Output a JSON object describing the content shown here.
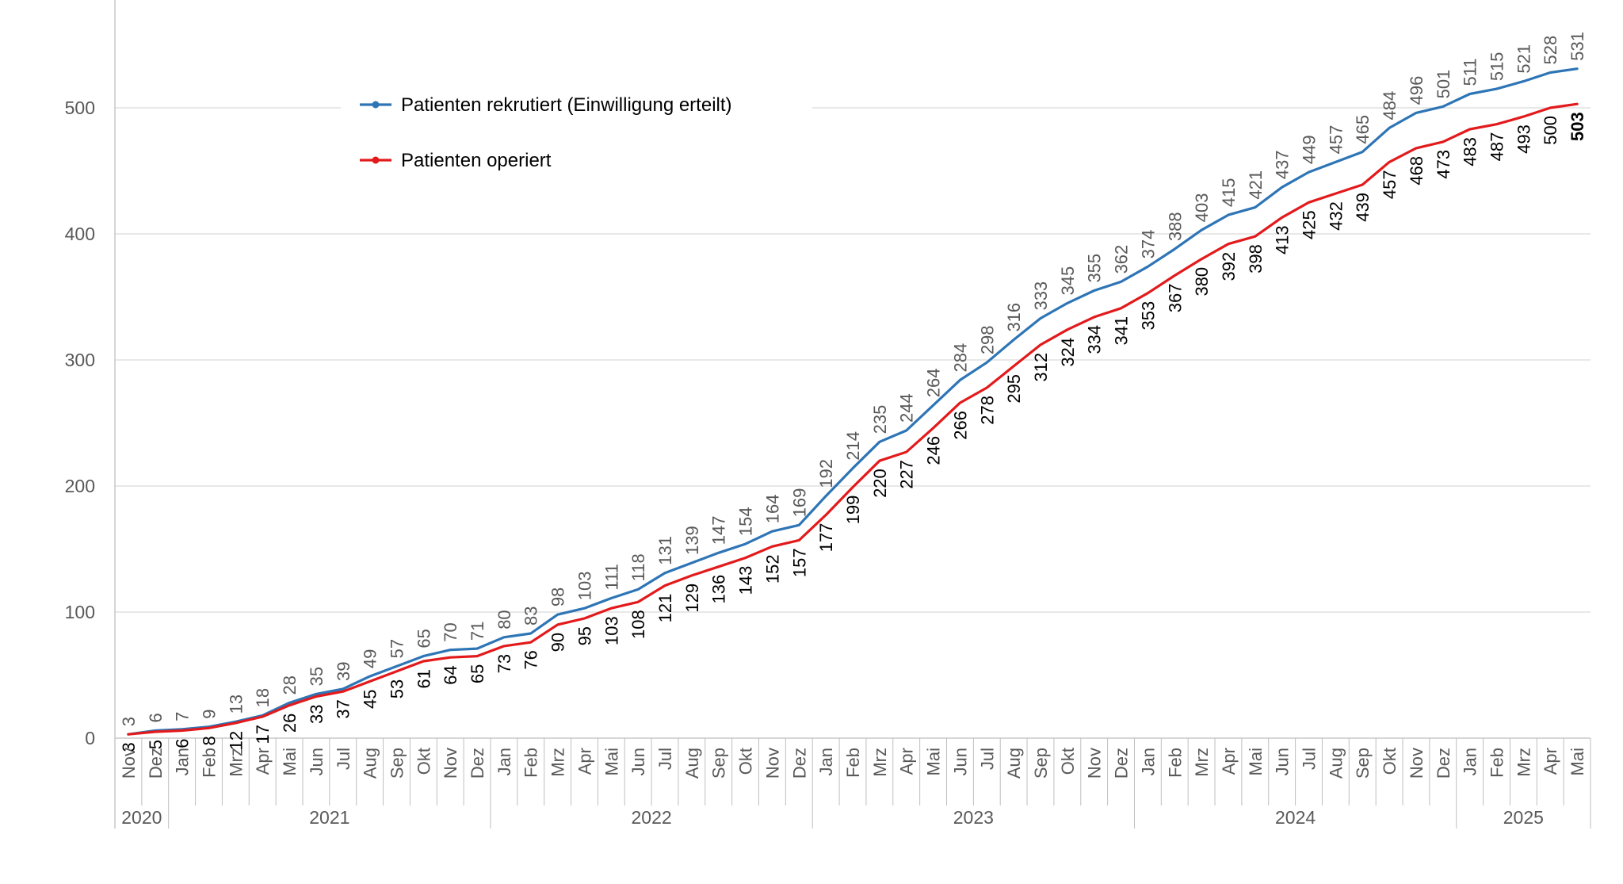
{
  "chart_data": {
    "type": "line",
    "title": "",
    "xlabel": "",
    "ylabel": "",
    "ylim": [
      0,
      580
    ],
    "y_ticks": [
      0,
      100,
      200,
      300,
      400,
      500
    ],
    "grid": "horizontal",
    "legend_position": "top-left",
    "categories": [
      "Nov",
      "Dez",
      "Jan",
      "Feb",
      "Mrz",
      "Apr",
      "Mai",
      "Jun",
      "Jul",
      "Aug",
      "Sep",
      "Okt",
      "Nov",
      "Dez",
      "Jan",
      "Feb",
      "Mrz",
      "Apr",
      "Mai",
      "Jun",
      "Jul",
      "Aug",
      "Sep",
      "Okt",
      "Nov",
      "Dez",
      "Jan",
      "Feb",
      "Mrz",
      "Apr",
      "Mai",
      "Jun",
      "Jul",
      "Aug",
      "Sep",
      "Okt",
      "Nov",
      "Dez",
      "Jan",
      "Feb",
      "Mrz",
      "Apr",
      "Mai",
      "Jun",
      "Jul",
      "Aug",
      "Sep",
      "Okt",
      "Nov",
      "Dez",
      "Jan",
      "Feb",
      "Mrz",
      "Apr",
      "Mai"
    ],
    "year_groups": [
      {
        "label": "2020",
        "count": 2
      },
      {
        "label": "2021",
        "count": 12
      },
      {
        "label": "2022",
        "count": 12
      },
      {
        "label": "2023",
        "count": 12
      },
      {
        "label": "2024",
        "count": 12
      },
      {
        "label": "2025",
        "count": 5
      }
    ],
    "series": [
      {
        "name": "Patienten rekrutiert (Einwilligung erteilt)",
        "color": "#2e75b6",
        "values": [
          3,
          6,
          7,
          9,
          13,
          18,
          28,
          35,
          39,
          49,
          57,
          65,
          70,
          71,
          80,
          83,
          98,
          103,
          111,
          118,
          131,
          139,
          147,
          154,
          164,
          169,
          192,
          214,
          235,
          244,
          264,
          284,
          298,
          316,
          333,
          345,
          355,
          362,
          374,
          388,
          403,
          415,
          421,
          437,
          449,
          457,
          465,
          484,
          496,
          501,
          511,
          515,
          521,
          528,
          531
        ]
      },
      {
        "name": "Patienten operiert",
        "color": "#e31a1c",
        "values": [
          3,
          5,
          6,
          8,
          12,
          17,
          26,
          33,
          37,
          45,
          53,
          61,
          64,
          65,
          73,
          76,
          90,
          95,
          103,
          108,
          121,
          129,
          136,
          143,
          152,
          157,
          177,
          199,
          220,
          227,
          246,
          266,
          278,
          295,
          312,
          324,
          334,
          341,
          353,
          367,
          380,
          392,
          398,
          413,
          425,
          432,
          439,
          457,
          468,
          473,
          483,
          487,
          493,
          500,
          503
        ]
      }
    ]
  }
}
